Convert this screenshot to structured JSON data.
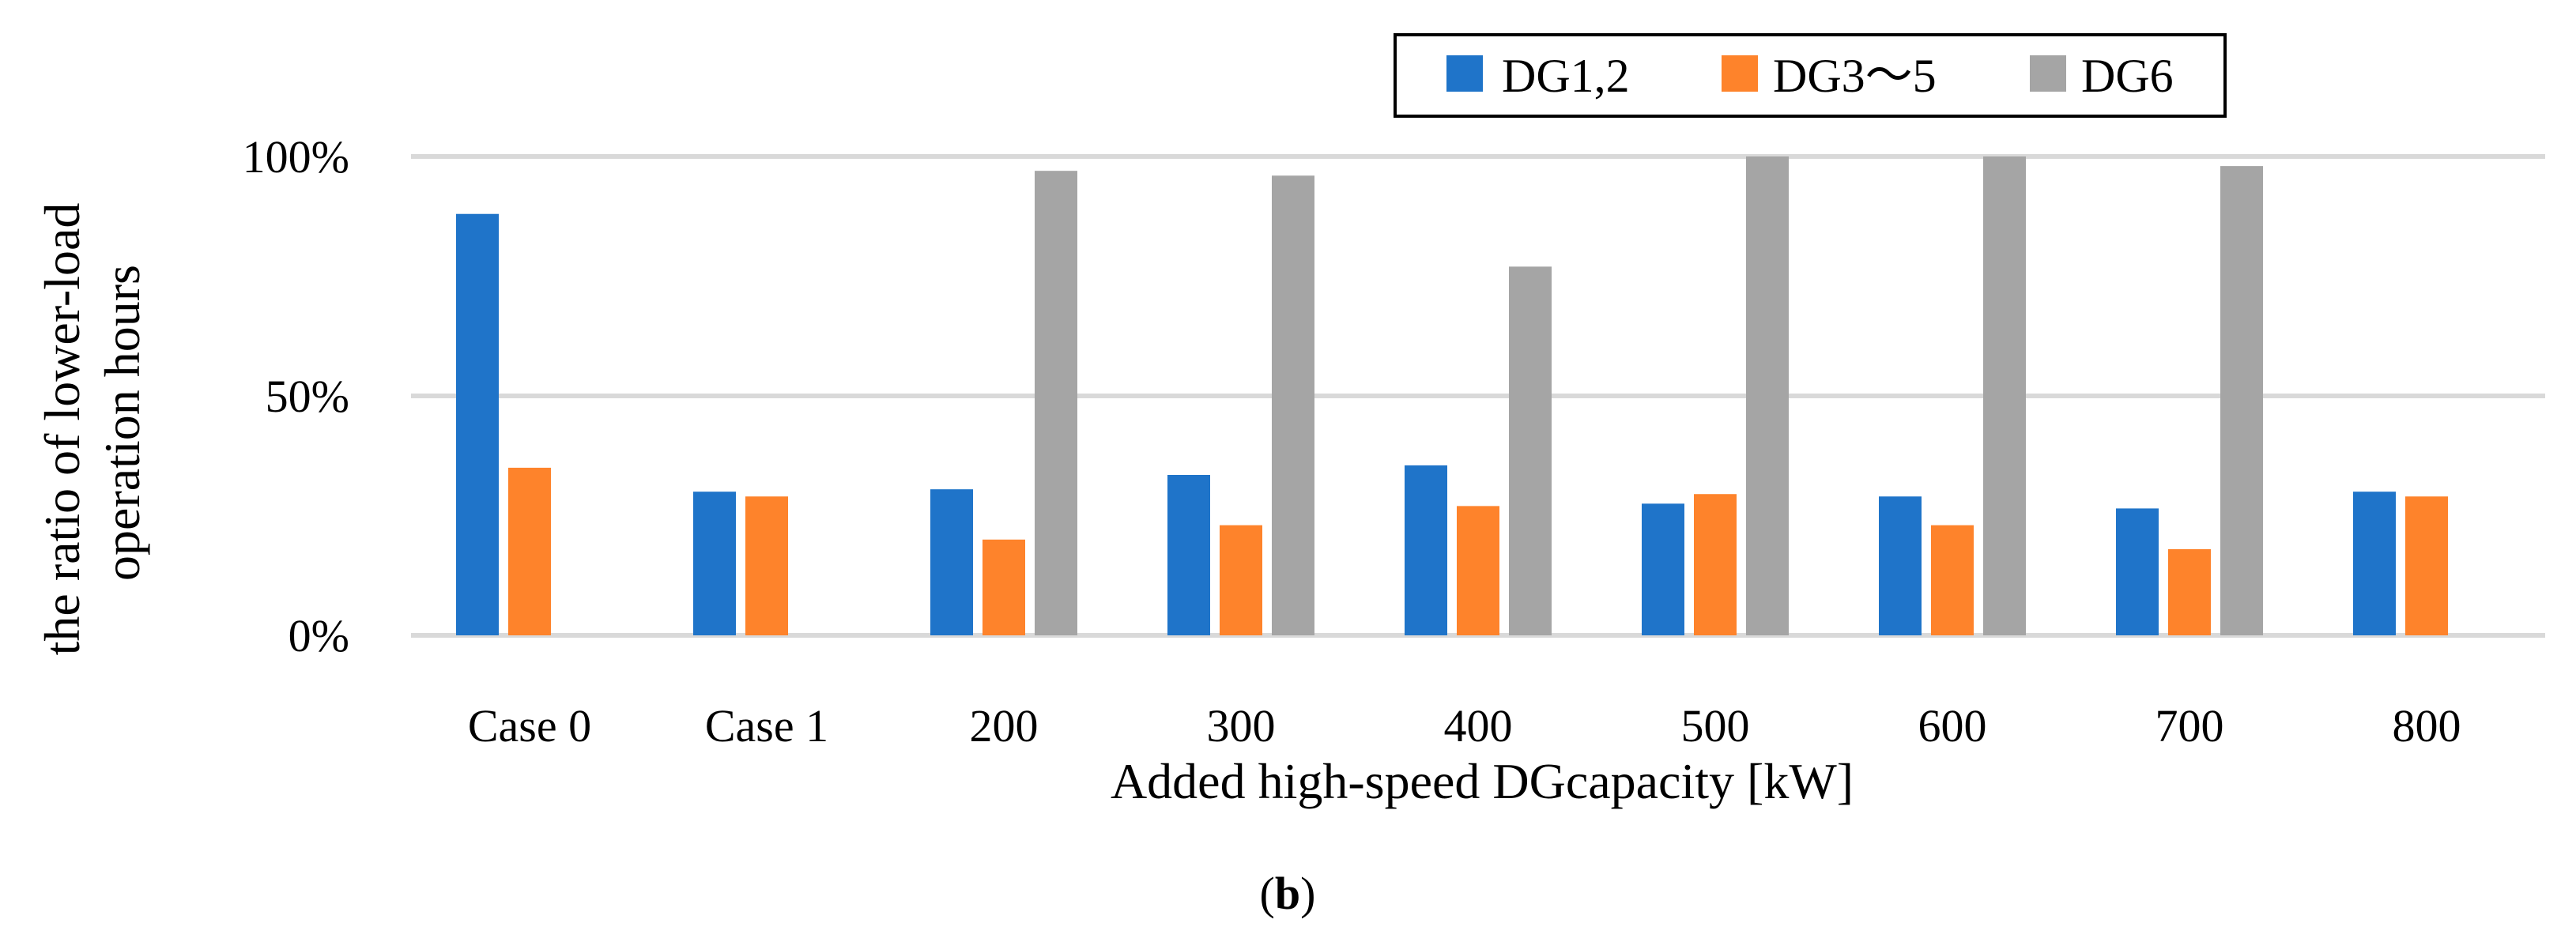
{
  "chart_data": {
    "type": "bar",
    "title": "",
    "xlabel": "Added high-speed DGcapacity [kW]",
    "ylabel_lines": [
      "the ratio of lower-load",
      "operation hours"
    ],
    "caption_parts": [
      "(",
      "b",
      ")"
    ],
    "categories": [
      "Case 0",
      "Case 1",
      "200",
      "300",
      "400",
      "500",
      "600",
      "700",
      "800"
    ],
    "ylim": [
      0,
      1
    ],
    "yticks": [
      {
        "value": 0,
        "label": "0%"
      },
      {
        "value": 0.5,
        "label": "50%"
      },
      {
        "value": 1,
        "label": "100%"
      }
    ],
    "grid": true,
    "legend_position": "top-right",
    "series": [
      {
        "name": "DG1,2",
        "color": "#1f74c9",
        "values": [
          0.88,
          0.3,
          0.305,
          0.335,
          0.355,
          0.275,
          0.29,
          0.265,
          0.3
        ]
      },
      {
        "name": "DG3～5",
        "color": "#fe832b",
        "values": [
          0.35,
          0.29,
          0.2,
          0.23,
          0.27,
          0.295,
          0.23,
          0.18,
          0.29
        ]
      },
      {
        "name": "DG6",
        "color": "#a5a5a5",
        "values": [
          0,
          0,
          0.97,
          0.96,
          0.77,
          1.0,
          1.0,
          0.98,
          0
        ]
      }
    ]
  }
}
